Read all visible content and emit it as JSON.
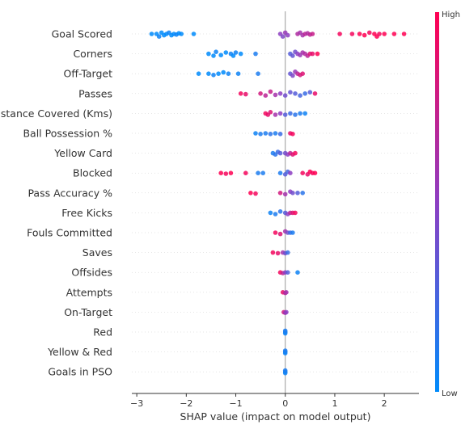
{
  "chart_data": {
    "type": "scatter",
    "subtype": "shap-beeswarm",
    "title": "",
    "xlabel": "SHAP value (impact on model output)",
    "ylabel": "",
    "xlim": [
      -3.1,
      2.7
    ],
    "xticks": [
      -3,
      -2,
      -1,
      0,
      1,
      2
    ],
    "xtick_labels": [
      "−3",
      "−2",
      "−1",
      "0",
      "1",
      "2"
    ],
    "grid": false,
    "colorbar": {
      "high_label": "High",
      "low_label": "Low",
      "high_color": "#ff0052",
      "low_color": "#008bfb"
    },
    "features": [
      {
        "name": "Goal Scored",
        "points": [
          [
            -2.7,
            0
          ],
          [
            -2.6,
            0
          ],
          [
            -2.55,
            0.2
          ],
          [
            -2.5,
            -0.1
          ],
          [
            -2.45,
            0.1
          ],
          [
            -2.4,
            0
          ],
          [
            -2.35,
            -0.1
          ],
          [
            -2.3,
            0.1
          ],
          [
            -2.25,
            0
          ],
          [
            -2.2,
            0.05
          ],
          [
            -2.15,
            -0.05
          ],
          [
            -2.1,
            0
          ],
          [
            -1.85,
            0
          ],
          [
            -0.1,
            0
          ],
          [
            -0.05,
            0.2
          ],
          [
            0,
            -0.1
          ],
          [
            0.05,
            0.1
          ],
          [
            0.25,
            0
          ],
          [
            0.3,
            -0.1
          ],
          [
            0.35,
            0.1
          ],
          [
            0.4,
            0
          ],
          [
            0.45,
            -0.05
          ],
          [
            0.5,
            0.05
          ],
          [
            0.55,
            0
          ],
          [
            1.1,
            0
          ],
          [
            1.35,
            0
          ],
          [
            1.5,
            0
          ],
          [
            1.6,
            0.1
          ],
          [
            1.7,
            -0.1
          ],
          [
            1.8,
            0
          ],
          [
            1.85,
            0.2
          ],
          [
            1.9,
            0
          ],
          [
            2.0,
            0
          ],
          [
            2.2,
            0
          ],
          [
            2.4,
            0
          ]
        ],
        "values": [
          0,
          0,
          0.05,
          0,
          0,
          0,
          0.05,
          0,
          0,
          0.05,
          0,
          0,
          0,
          0.5,
          0.45,
          0.55,
          0.5,
          0.65,
          0.6,
          0.6,
          0.7,
          0.65,
          0.7,
          0.75,
          0.95,
          0.95,
          1,
          1,
          0.95,
          1,
          1,
          0.95,
          1,
          1,
          1
        ]
      },
      {
        "name": "Corners",
        "points": [
          [
            -1.55,
            0
          ],
          [
            -1.45,
            0.15
          ],
          [
            -1.4,
            -0.15
          ],
          [
            -1.3,
            0.1
          ],
          [
            -1.2,
            -0.1
          ],
          [
            -1.1,
            0
          ],
          [
            -1.05,
            0.15
          ],
          [
            -1.0,
            -0.1
          ],
          [
            -0.9,
            0
          ],
          [
            -0.6,
            0
          ],
          [
            0.1,
            0
          ],
          [
            0.15,
            0.15
          ],
          [
            0.2,
            -0.15
          ],
          [
            0.25,
            0
          ],
          [
            0.3,
            0.1
          ],
          [
            0.35,
            -0.1
          ],
          [
            0.4,
            0
          ],
          [
            0.45,
            0.15
          ],
          [
            0.5,
            0
          ],
          [
            0.55,
            0
          ],
          [
            0.65,
            0
          ]
        ],
        "values": [
          0,
          0,
          0.05,
          0,
          0,
          0.05,
          0,
          0.05,
          0,
          0.1,
          0.3,
          0.35,
          0.4,
          0.5,
          0.55,
          0.6,
          0.65,
          0.7,
          0.85,
          0.9,
          1
        ]
      },
      {
        "name": "Off-Target",
        "points": [
          [
            -1.75,
            0
          ],
          [
            -1.55,
            0
          ],
          [
            -1.45,
            0.1
          ],
          [
            -1.35,
            0
          ],
          [
            -1.25,
            -0.1
          ],
          [
            -1.15,
            0
          ],
          [
            -0.95,
            0
          ],
          [
            -0.55,
            0
          ],
          [
            0.1,
            0
          ],
          [
            0.15,
            0.15
          ],
          [
            0.2,
            -0.15
          ],
          [
            0.25,
            0
          ],
          [
            0.3,
            0.1
          ],
          [
            0.35,
            0
          ]
        ],
        "values": [
          0,
          0,
          0.05,
          0,
          0,
          0.05,
          0.05,
          0.1,
          0.35,
          0.45,
          0.55,
          0.7,
          0.8,
          0.85
        ]
      },
      {
        "name": "Passes",
        "points": [
          [
            -0.9,
            0
          ],
          [
            -0.8,
            0.05
          ],
          [
            -0.5,
            0
          ],
          [
            -0.4,
            0.15
          ],
          [
            -0.3,
            -0.15
          ],
          [
            -0.2,
            0.1
          ],
          [
            -0.1,
            0
          ],
          [
            0,
            0.15
          ],
          [
            0.1,
            -0.1
          ],
          [
            0.2,
            0
          ],
          [
            0.3,
            0.15
          ],
          [
            0.4,
            0
          ],
          [
            0.5,
            -0.1
          ],
          [
            0.6,
            0
          ]
        ],
        "values": [
          0.95,
          0.9,
          0.8,
          0.7,
          0.75,
          0.6,
          0.5,
          0.4,
          0.35,
          0.3,
          0.25,
          0.2,
          0.3,
          0.9
        ]
      },
      {
        "name": "Distance Covered (Kms)",
        "points": [
          [
            -0.4,
            0
          ],
          [
            -0.35,
            0.1
          ],
          [
            -0.3,
            -0.1
          ],
          [
            -0.2,
            0.1
          ],
          [
            -0.1,
            0
          ],
          [
            0,
            0.1
          ],
          [
            0.1,
            0
          ],
          [
            0.2,
            0.1
          ],
          [
            0.3,
            0
          ],
          [
            0.4,
            0
          ]
        ],
        "values": [
          0.95,
          0.9,
          0.85,
          0.6,
          0.5,
          0.3,
          0.2,
          0.15,
          0.1,
          0.05
        ]
      },
      {
        "name": "Ball Possession %",
        "points": [
          [
            -0.6,
            0
          ],
          [
            -0.5,
            0.05
          ],
          [
            -0.4,
            0
          ],
          [
            -0.3,
            0.05
          ],
          [
            -0.2,
            0
          ],
          [
            -0.1,
            0.05
          ],
          [
            0.1,
            0
          ],
          [
            0.15,
            0.05
          ]
        ],
        "values": [
          0.05,
          0.1,
          0.1,
          0.15,
          0.1,
          0.2,
          0.9,
          0.95
        ]
      },
      {
        "name": "Yellow Card",
        "points": [
          [
            -0.25,
            0
          ],
          [
            -0.2,
            0.1
          ],
          [
            -0.15,
            -0.1
          ],
          [
            -0.1,
            0
          ],
          [
            0,
            0
          ],
          [
            0.05,
            0.1
          ],
          [
            0.1,
            0
          ],
          [
            0.15,
            0.1
          ],
          [
            0.2,
            0
          ]
        ],
        "values": [
          0.1,
          0.15,
          0.2,
          0.3,
          0.4,
          0.5,
          0.7,
          0.85,
          0.95
        ]
      },
      {
        "name": "Blocked",
        "points": [
          [
            -1.3,
            0
          ],
          [
            -1.2,
            0.05
          ],
          [
            -1.1,
            0
          ],
          [
            -0.8,
            0
          ],
          [
            -0.55,
            0
          ],
          [
            -0.45,
            0
          ],
          [
            -0.1,
            0
          ],
          [
            0,
            0.1
          ],
          [
            0.05,
            -0.1
          ],
          [
            0.1,
            0
          ],
          [
            0.35,
            0
          ],
          [
            0.45,
            0.1
          ],
          [
            0.5,
            -0.1
          ],
          [
            0.55,
            0
          ],
          [
            0.6,
            0
          ]
        ],
        "values": [
          1,
          0.95,
          1,
          0.95,
          0.1,
          0.1,
          0.1,
          0.3,
          0.25,
          0.5,
          0.95,
          0.9,
          1,
          0.95,
          1
        ]
      },
      {
        "name": "Pass Accuracy %",
        "points": [
          [
            -0.7,
            0
          ],
          [
            -0.6,
            0.05
          ],
          [
            -0.1,
            0
          ],
          [
            0,
            0.1
          ],
          [
            0.1,
            -0.1
          ],
          [
            0.15,
            0
          ],
          [
            0.25,
            0
          ],
          [
            0.35,
            0
          ]
        ],
        "values": [
          1,
          0.95,
          0.8,
          0.6,
          0.5,
          0.4,
          0.3,
          0.15
        ]
      },
      {
        "name": "Free Kicks",
        "points": [
          [
            -0.3,
            0
          ],
          [
            -0.2,
            0.1
          ],
          [
            -0.1,
            -0.1
          ],
          [
            0,
            0
          ],
          [
            0.05,
            0.1
          ],
          [
            0.1,
            0
          ],
          [
            0.15,
            0
          ],
          [
            0.2,
            0
          ]
        ],
        "values": [
          0.05,
          0.1,
          0.15,
          0.3,
          0.5,
          0.7,
          0.85,
          0.95
        ]
      },
      {
        "name": "Fouls Committed",
        "points": [
          [
            -0.2,
            0
          ],
          [
            -0.1,
            0.1
          ],
          [
            0,
            -0.1
          ],
          [
            0.05,
            0
          ],
          [
            0.1,
            0
          ],
          [
            0.15,
            0
          ]
        ],
        "values": [
          0.95,
          0.85,
          0.6,
          0.4,
          0.2,
          0.1
        ]
      },
      {
        "name": "Saves",
        "points": [
          [
            -0.25,
            0
          ],
          [
            -0.15,
            0.05
          ],
          [
            -0.05,
            0
          ],
          [
            0,
            0.05
          ],
          [
            0.05,
            0
          ]
        ],
        "values": [
          0.95,
          0.9,
          0.6,
          0.4,
          0.2
        ]
      },
      {
        "name": "Offsides",
        "points": [
          [
            -0.1,
            0
          ],
          [
            -0.05,
            0.05
          ],
          [
            0,
            0
          ],
          [
            0.05,
            0
          ],
          [
            0.25,
            0
          ]
        ],
        "values": [
          0.95,
          0.7,
          0.5,
          0.3,
          0.05
        ]
      },
      {
        "name": "Attempts",
        "points": [
          [
            -0.05,
            0
          ],
          [
            0,
            0.05
          ],
          [
            0.02,
            0
          ]
        ],
        "values": [
          0.9,
          0.7,
          0.6
        ]
      },
      {
        "name": "On-Target",
        "points": [
          [
            -0.03,
            0
          ],
          [
            0,
            0.05
          ],
          [
            0.02,
            0
          ]
        ],
        "values": [
          0.8,
          0.6,
          0.5
        ]
      },
      {
        "name": "Red",
        "points": [
          [
            0,
            0
          ],
          [
            0,
            0.1
          ],
          [
            0,
            -0.1
          ]
        ],
        "values": [
          0.05,
          0.05,
          0.1
        ]
      },
      {
        "name": "Yellow & Red",
        "points": [
          [
            0,
            0
          ],
          [
            0,
            0.1
          ],
          [
            0,
            -0.1
          ]
        ],
        "values": [
          0.05,
          0.05,
          0.1
        ]
      },
      {
        "name": "Goals in PSO",
        "points": [
          [
            0,
            0
          ],
          [
            0,
            0.1
          ],
          [
            0,
            -0.1
          ]
        ],
        "values": [
          0.05,
          0.05,
          0.1
        ]
      }
    ]
  }
}
